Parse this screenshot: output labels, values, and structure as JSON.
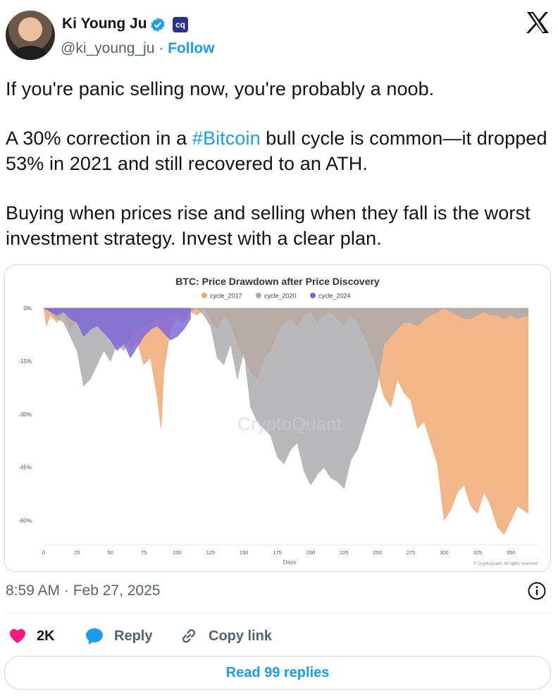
{
  "author": {
    "name": "Ki Young Ju",
    "handle": "@ki_young_ju",
    "separator": "·",
    "follow_label": "Follow",
    "badge_logo_text": "cq",
    "verified_color": "#1d9bf0"
  },
  "header": {
    "brand_icon": "x-logo-icon"
  },
  "tweet": {
    "line1": "If you're panic selling now, you're probably a noob.",
    "line2_pre": "A 30% correction in a ",
    "hashtag": "#Bitcoin",
    "line2_post": " bull cycle is common—it dropped 53% in 2021 and still recovered to an ATH.",
    "line3": "Buying when prices rise and selling when they fall is the worst investment strategy. Invest with a clear plan."
  },
  "chart_data": {
    "type": "area",
    "title": "BTC: Price Drawdown after Price Discovery",
    "xlabel": "Days",
    "ylabel": "",
    "watermark": "CryptoQuant",
    "copyright": "© CryptoQuant. All rights reserved",
    "xlim": [
      0,
      370
    ],
    "ylim": [
      -67,
      0
    ],
    "x_ticks": [
      0,
      25,
      50,
      75,
      100,
      125,
      150,
      175,
      200,
      225,
      250,
      275,
      300,
      325,
      350
    ],
    "y_ticks": [
      0,
      -15,
      -30,
      -45,
      -60
    ],
    "y_tick_labels": [
      "0%",
      "-15%",
      "-30%",
      "-45%",
      "-60%"
    ],
    "legend_position": "top-center",
    "grid": false,
    "series": [
      {
        "name": "cycle_2017",
        "color": "#f0a66f",
        "x": [
          0,
          2,
          5,
          10,
          15,
          20,
          25,
          30,
          35,
          40,
          45,
          50,
          55,
          60,
          65,
          70,
          75,
          80,
          85,
          88,
          90,
          95,
          100,
          105,
          110,
          115,
          120,
          125,
          130,
          135,
          140,
          145,
          150,
          155,
          160,
          165,
          170,
          175,
          180,
          185,
          190,
          195,
          200,
          205,
          210,
          215,
          220,
          225,
          230,
          235,
          240,
          245,
          250,
          255,
          260,
          265,
          270,
          275,
          280,
          285,
          290,
          295,
          300,
          305,
          310,
          315,
          320,
          325,
          330,
          335,
          340,
          345,
          350,
          355,
          363
        ],
        "y": [
          0,
          -5,
          -2,
          -4,
          -1,
          -6,
          -3,
          -2,
          -5,
          -1,
          -6,
          -4,
          -8,
          -2,
          -12,
          -9,
          -16,
          -14,
          -25,
          -34,
          -18,
          -6,
          -3,
          -4,
          -1,
          -2,
          0,
          -3,
          -6,
          -2,
          -4,
          -10,
          -14,
          -18,
          -20,
          -14,
          -12,
          -7,
          -4,
          -3,
          -5,
          -2,
          -1,
          -4,
          -2,
          -1,
          -3,
          -5,
          -2,
          -4,
          -8,
          -12,
          -18,
          -25,
          -28,
          -20,
          -24,
          -26,
          -34,
          -32,
          -38,
          -44,
          -60,
          -57,
          -52,
          -50,
          -56,
          -58,
          -52,
          -56,
          -62,
          -64,
          -60,
          -56,
          -58
        ]
      },
      {
        "name": "cycle_2020",
        "color": "#a9a8ac",
        "x": [
          0,
          5,
          10,
          15,
          20,
          25,
          30,
          35,
          40,
          45,
          50,
          55,
          60,
          65,
          70,
          75,
          80,
          85,
          90,
          95,
          100,
          105,
          110,
          115,
          120,
          125,
          130,
          135,
          140,
          145,
          150,
          155,
          160,
          165,
          170,
          175,
          180,
          185,
          190,
          195,
          200,
          205,
          210,
          215,
          220,
          225,
          230,
          235,
          240,
          245,
          250,
          255,
          260,
          265,
          270,
          275,
          280,
          285,
          290,
          295,
          300,
          305,
          310,
          315,
          320,
          325,
          330,
          335,
          340,
          345,
          350,
          355,
          363
        ],
        "y": [
          0,
          -1,
          -3,
          -4,
          -8,
          -12,
          -22,
          -20,
          -16,
          -12,
          -15,
          -10,
          -12,
          -8,
          -6,
          -5,
          -4,
          -3,
          -3,
          -2,
          -1,
          -2,
          -1,
          0,
          -2,
          -5,
          -14,
          -16,
          -10,
          -20,
          -12,
          -28,
          -32,
          -34,
          -36,
          -42,
          -44,
          -40,
          -38,
          -46,
          -50,
          -47,
          -45,
          -48,
          -49,
          -51,
          -43,
          -40,
          -34,
          -28,
          -22,
          -10,
          -8,
          -6,
          -4,
          -4,
          -5,
          -3,
          -2,
          -1,
          0,
          -1,
          -2,
          -3,
          -3,
          -2,
          -1,
          -2,
          -2,
          -3,
          -2,
          -3,
          -2
        ]
      },
      {
        "name": "cycle_2024",
        "color": "#7b65d9",
        "x": [
          0,
          5,
          10,
          15,
          20,
          25,
          30,
          35,
          40,
          45,
          50,
          55,
          60,
          65,
          70,
          75,
          80,
          85,
          90,
          95,
          100,
          105,
          110
        ],
        "y": [
          0,
          -1,
          -2,
          -1,
          -3,
          -4,
          -8,
          -6,
          -5,
          -7,
          -9,
          -12,
          -10,
          -14,
          -11,
          -8,
          -6,
          -5,
          -7,
          -9,
          -8,
          -6,
          -3
        ]
      }
    ]
  },
  "footer": {
    "timestamp": "8:59 AM · Feb 27, 2025",
    "like_count": "2K",
    "reply_label": "Reply",
    "copy_label": "Copy link",
    "read_replies_label": "Read 99 replies"
  }
}
